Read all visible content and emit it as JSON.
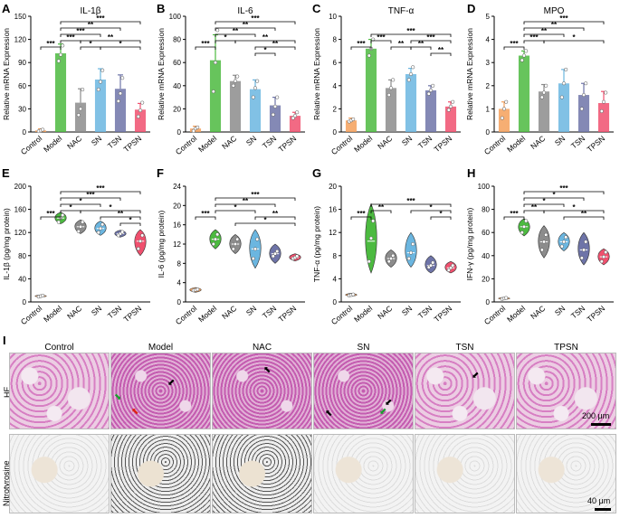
{
  "panels": {
    "A": "A",
    "B": "B",
    "C": "C",
    "D": "D",
    "E": "E",
    "F": "F",
    "G": "G",
    "H": "H",
    "I": "I"
  },
  "groups": [
    "Control",
    "Model",
    "NAC",
    "SN",
    "TSN",
    "TPSN"
  ],
  "colors": {
    "Control": "#f5a05a",
    "Model": "#4cba40",
    "NAC": "#8c8c8c",
    "SN": "#6bb6e0",
    "TSN": "#6e74a8",
    "TPSN": "#f0506e"
  },
  "chart_data": [
    {
      "id": "A",
      "type": "bar",
      "title": "IL-1β",
      "ylabel": "Relative mRNA Expression",
      "ylim": [
        0,
        150
      ],
      "ticks": [
        0,
        30,
        60,
        90,
        120,
        150
      ],
      "tick_labels": [
        "0",
        "30",
        "60",
        "90",
        "120",
        "150"
      ],
      "values": [
        2,
        102,
        38,
        68,
        56,
        29
      ],
      "errors": [
        2,
        12,
        18,
        14,
        18,
        8
      ],
      "points": [
        [
          1,
          2,
          3
        ],
        [
          92,
          100,
          112
        ],
        [
          22,
          30,
          55
        ],
        [
          55,
          65,
          80
        ],
        [
          40,
          50,
          70
        ],
        [
          20,
          28,
          38
        ]
      ],
      "sig": [
        {
          "a": 1,
          "b": 2,
          "t": "***",
          "lv": 1
        },
        {
          "a": 1,
          "b": 3,
          "t": "***",
          "lv": 2
        },
        {
          "a": 1,
          "b": 4,
          "t": "**",
          "lv": 3
        },
        {
          "a": 1,
          "b": 5,
          "t": "***",
          "lv": 4
        },
        {
          "a": 0,
          "b": 1,
          "t": "***",
          "lv": 0
        },
        {
          "a": 2,
          "b": 5,
          "t": "**",
          "lv": 1
        },
        {
          "a": 3,
          "b": 5,
          "t": "*",
          "lv": 0
        },
        {
          "a": 2,
          "b": 3,
          "t": "*",
          "lv": 0
        }
      ]
    },
    {
      "id": "B",
      "type": "bar",
      "title": "IL-6",
      "ylabel": "Relative mRNA Expression",
      "ylim": [
        0,
        100
      ],
      "ticks": [
        0,
        20,
        40,
        60,
        80,
        100
      ],
      "tick_labels": [
        "0",
        "20",
        "40",
        "60",
        "80",
        "100"
      ],
      "values": [
        3,
        62,
        44,
        37,
        23,
        14
      ],
      "errors": [
        2,
        22,
        5,
        8,
        7,
        3
      ],
      "points": [
        [
          1,
          3,
          4
        ],
        [
          35,
          60,
          88
        ],
        [
          40,
          44,
          48
        ],
        [
          30,
          38,
          44
        ],
        [
          15,
          22,
          30
        ],
        [
          12,
          14,
          17
        ]
      ],
      "sig": [
        {
          "a": 0,
          "b": 1,
          "t": "***",
          "lv": 0
        },
        {
          "a": 1,
          "b": 2,
          "t": "*",
          "lv": 1
        },
        {
          "a": 1,
          "b": 3,
          "t": "**",
          "lv": 2
        },
        {
          "a": 1,
          "b": 4,
          "t": "**",
          "lv": 3
        },
        {
          "a": 1,
          "b": 5,
          "t": "***",
          "lv": 4
        },
        {
          "a": 2,
          "b": 5,
          "t": "**",
          "lv": 1
        },
        {
          "a": 3,
          "b": 5,
          "t": "**",
          "lv": 0
        },
        {
          "a": 3,
          "b": 4,
          "t": "*",
          "lv": -1
        }
      ]
    },
    {
      "id": "C",
      "type": "bar",
      "title": "TNF-α",
      "ylabel": "Relative mRNA Expression",
      "ylim": [
        0,
        10
      ],
      "ticks": [
        0,
        2,
        4,
        6,
        8,
        10
      ],
      "tick_labels": [
        "0",
        "2",
        "4",
        "6",
        "8",
        "10"
      ],
      "values": [
        1,
        7.2,
        3.8,
        5.0,
        3.6,
        2.2
      ],
      "errors": [
        0.2,
        0.8,
        0.7,
        0.5,
        0.4,
        0.4
      ],
      "points": [
        [
          0.9,
          1.0,
          1.1
        ],
        [
          6.6,
          7.2,
          8.0
        ],
        [
          3.2,
          3.8,
          4.5
        ],
        [
          4.5,
          5.0,
          5.6
        ],
        [
          3.3,
          3.6,
          4.0
        ],
        [
          1.9,
          2.2,
          2.6
        ]
      ],
      "sig": [
        {
          "a": 0,
          "b": 1,
          "t": "***",
          "lv": 0
        },
        {
          "a": 1,
          "b": 2,
          "t": "***",
          "lv": 1
        },
        {
          "a": 1,
          "b": 5,
          "t": "***",
          "lv": 2
        },
        {
          "a": 2,
          "b": 3,
          "t": "**",
          "lv": 0
        },
        {
          "a": 3,
          "b": 5,
          "t": "***",
          "lv": 1
        },
        {
          "a": 3,
          "b": 4,
          "t": "**",
          "lv": 0
        },
        {
          "a": 4,
          "b": 5,
          "t": "**",
          "lv": -1
        }
      ]
    },
    {
      "id": "D",
      "type": "bar",
      "title": "MPO",
      "ylabel": "Relative mRNA Expression",
      "ylim": [
        0,
        5
      ],
      "ticks": [
        0,
        1,
        2,
        3,
        4,
        5
      ],
      "tick_labels": [
        "0",
        "1",
        "2",
        "3",
        "4",
        "5"
      ],
      "values": [
        1.0,
        3.3,
        1.75,
        2.1,
        1.6,
        1.25
      ],
      "errors": [
        0.3,
        0.2,
        0.3,
        0.6,
        0.5,
        0.5
      ],
      "points": [
        [
          0.6,
          1.0,
          1.3
        ],
        [
          3.1,
          3.3,
          3.5
        ],
        [
          1.5,
          1.7,
          2.0
        ],
        [
          1.5,
          2.1,
          2.7
        ],
        [
          1.0,
          1.6,
          2.1
        ],
        [
          0.9,
          1.3,
          1.7
        ]
      ],
      "sig": [
        {
          "a": 0,
          "b": 1,
          "t": "***",
          "lv": 0
        },
        {
          "a": 1,
          "b": 2,
          "t": "***",
          "lv": 1
        },
        {
          "a": 1,
          "b": 3,
          "t": "**",
          "lv": 2
        },
        {
          "a": 1,
          "b": 4,
          "t": "**",
          "lv": 3
        },
        {
          "a": 1,
          "b": 5,
          "t": "***",
          "lv": 4
        },
        {
          "a": 2,
          "b": 5,
          "t": "*",
          "lv": 1
        }
      ]
    },
    {
      "id": "E",
      "type": "violin",
      "ylabel": "IL-1β (pg/mg protein)",
      "ylim": [
        0,
        200
      ],
      "ticks": [
        0,
        40,
        80,
        120,
        160,
        200
      ],
      "tick_labels": [
        "0",
        "40",
        "80",
        "120",
        "160",
        "200"
      ],
      "values": [
        10,
        145,
        130,
        127,
        118,
        105
      ],
      "spread": [
        [
          8,
          12
        ],
        [
          135,
          155
        ],
        [
          118,
          142
        ],
        [
          115,
          140
        ],
        [
          112,
          124
        ],
        [
          80,
          125
        ]
      ],
      "points": [
        [
          9,
          10,
          11
        ],
        [
          138,
          145,
          150
        ],
        [
          122,
          130,
          138
        ],
        [
          120,
          127,
          134
        ],
        [
          115,
          118,
          121
        ],
        [
          92,
          105,
          115
        ]
      ],
      "sig": [
        {
          "a": 0,
          "b": 1,
          "t": "***",
          "lv": 0
        },
        {
          "a": 1,
          "b": 2,
          "t": "*",
          "lv": 1
        },
        {
          "a": 1,
          "b": 3,
          "t": "*",
          "lv": 2
        },
        {
          "a": 1,
          "b": 4,
          "t": "***",
          "lv": 3
        },
        {
          "a": 1,
          "b": 5,
          "t": "***",
          "lv": 4
        },
        {
          "a": 2,
          "b": 5,
          "t": "*",
          "lv": 1
        },
        {
          "a": 3,
          "b": 5,
          "t": "**",
          "lv": 0
        },
        {
          "a": 4,
          "b": 5,
          "t": "*",
          "lv": -1
        }
      ]
    },
    {
      "id": "F",
      "type": "violin",
      "ylabel": "IL-6 (pg/mg protein)",
      "ylim": [
        0,
        24
      ],
      "ticks": [
        0,
        4,
        8,
        12,
        16,
        20,
        24
      ],
      "tick_labels": [
        "0",
        "4",
        "8",
        "12",
        "16",
        "20",
        "24"
      ],
      "values": [
        2.5,
        13,
        12,
        11,
        10,
        9.2
      ],
      "spread": [
        [
          2,
          3
        ],
        [
          11,
          15
        ],
        [
          10,
          14
        ],
        [
          7,
          15
        ],
        [
          8,
          12
        ],
        [
          8.5,
          10
        ]
      ],
      "points": [
        [
          2.4,
          2.5,
          2.6
        ],
        [
          12,
          13,
          14
        ],
        [
          11,
          12,
          13
        ],
        [
          9,
          11,
          13
        ],
        [
          9.5,
          10,
          10.5
        ],
        [
          9,
          9.2,
          9.5
        ]
      ],
      "sig": [
        {
          "a": 0,
          "b": 1,
          "t": "***",
          "lv": 0
        },
        {
          "a": 1,
          "b": 3,
          "t": "*",
          "lv": 1
        },
        {
          "a": 1,
          "b": 4,
          "t": "**",
          "lv": 2
        },
        {
          "a": 1,
          "b": 5,
          "t": "***",
          "lv": 3
        },
        {
          "a": 3,
          "b": 5,
          "t": "**",
          "lv": 0
        },
        {
          "a": 2,
          "b": 5,
          "t": "*",
          "lv": -1
        }
      ]
    },
    {
      "id": "G",
      "type": "violin",
      "ylabel": "TNF-α (pg/mg protein)",
      "ylim": [
        0,
        20
      ],
      "ticks": [
        0,
        4,
        8,
        12,
        16,
        20
      ],
      "tick_labels": [
        "0",
        "4",
        "8",
        "12",
        "16",
        "20"
      ],
      "values": [
        1.2,
        10.5,
        7.5,
        8.5,
        6.3,
        5.9
      ],
      "spread": [
        [
          1,
          1.5
        ],
        [
          5,
          17
        ],
        [
          6,
          9
        ],
        [
          6,
          12
        ],
        [
          5,
          8
        ],
        [
          5,
          7
        ]
      ],
      "points": [
        [
          1.1,
          1.2,
          1.3
        ],
        [
          7,
          11,
          14
        ],
        [
          7,
          7.5,
          8
        ],
        [
          7.5,
          8.5,
          10
        ],
        [
          6,
          6.3,
          6.8
        ],
        [
          5.5,
          5.9,
          6.3
        ]
      ],
      "sig": [
        {
          "a": 0,
          "b": 1,
          "t": "***",
          "lv": 0
        },
        {
          "a": 1,
          "b": 2,
          "t": "**",
          "lv": 1
        },
        {
          "a": 1,
          "b": 5,
          "t": "***",
          "lv": 2
        },
        {
          "a": 3,
          "b": 5,
          "t": "*",
          "lv": 1
        },
        {
          "a": 4,
          "b": 5,
          "t": "*",
          "lv": 0
        }
      ]
    },
    {
      "id": "H",
      "type": "violin",
      "ylabel": "IFN-γ (pg/mg protein)",
      "ylim": [
        0,
        100
      ],
      "ticks": [
        0,
        20,
        40,
        60,
        80,
        100
      ],
      "tick_labels": [
        "0",
        "20",
        "40",
        "60",
        "80",
        "100"
      ],
      "values": [
        3,
        65,
        52,
        52,
        45,
        39
      ],
      "spread": [
        [
          2,
          4
        ],
        [
          57,
          72
        ],
        [
          38,
          66
        ],
        [
          44,
          60
        ],
        [
          32,
          60
        ],
        [
          32,
          46
        ]
      ],
      "points": [
        [
          2.5,
          3,
          3.5
        ],
        [
          60,
          65,
          70
        ],
        [
          45,
          52,
          58
        ],
        [
          48,
          52,
          56
        ],
        [
          38,
          45,
          52
        ],
        [
          35,
          39,
          43
        ]
      ],
      "sig": [
        {
          "a": 0,
          "b": 1,
          "t": "***",
          "lv": 0
        },
        {
          "a": 1,
          "b": 2,
          "t": "**",
          "lv": 1
        },
        {
          "a": 1,
          "b": 3,
          "t": "*",
          "lv": 2
        },
        {
          "a": 1,
          "b": 4,
          "t": "*",
          "lv": 3
        },
        {
          "a": 1,
          "b": 5,
          "t": "***",
          "lv": 4
        },
        {
          "a": 2,
          "b": 5,
          "t": "*",
          "lv": 1
        },
        {
          "a": 3,
          "b": 5,
          "t": "**",
          "lv": 0
        }
      ]
    }
  ],
  "histology": {
    "columns": [
      "Control",
      "Model",
      "NAC",
      "SN",
      "TSN",
      "TPSN"
    ],
    "rows": [
      "HE",
      "Nitrotyrosine"
    ],
    "scale_he": "200 μm",
    "scale_nt": "40 μm"
  }
}
